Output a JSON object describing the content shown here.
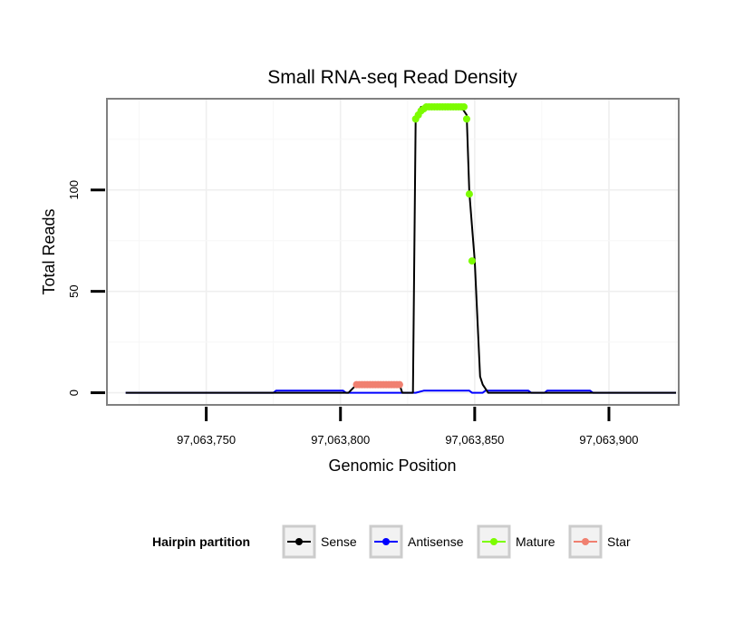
{
  "chart_data": {
    "type": "line",
    "title": "Small RNA-seq Read Density",
    "xlabel": "Genomic Position",
    "ylabel": "Total Reads",
    "xlim": [
      97063713,
      97063926
    ],
    "ylim": [
      -6,
      145
    ],
    "x_ticks": [
      97063750,
      97063800,
      97063850,
      97063900
    ],
    "x_tick_labels": [
      "97,063,750",
      "97,063,800",
      "97,063,850",
      "97,063,900"
    ],
    "y_ticks": [
      0,
      50,
      100
    ],
    "y_tick_labels": [
      "0",
      "50",
      "100"
    ],
    "grid": true,
    "legend": {
      "title": "Hairpin partition",
      "position": "bottom",
      "entries": [
        {
          "name": "Sense",
          "color": "#000000"
        },
        {
          "name": "Antisense",
          "color": "#0000ff"
        },
        {
          "name": "Mature",
          "color": "#7cfc00"
        },
        {
          "name": "Star",
          "color": "#f08070"
        }
      ]
    },
    "series": [
      {
        "name": "Sense",
        "color": "#000000",
        "style": "line",
        "x": [
          97063720,
          97063803,
          97063806,
          97063822,
          97063823,
          97063827,
          97063828,
          97063830,
          97063845,
          97063847,
          97063848,
          97063850,
          97063852,
          97063853,
          97063855,
          97063925
        ],
        "y": [
          0,
          0,
          4,
          4,
          0,
          0,
          135,
          141,
          141,
          137,
          99,
          65,
          8,
          4,
          0,
          0
        ]
      },
      {
        "name": "Antisense",
        "color": "#0000ff",
        "style": "line",
        "x": [
          97063720,
          97063775,
          97063776,
          97063801,
          97063802,
          97063828,
          97063831,
          97063848,
          97063849,
          97063853,
          97063854,
          97063870,
          97063871,
          97063876,
          97063877,
          97063893,
          97063894,
          97063925
        ],
        "y": [
          0,
          0,
          1,
          1,
          0,
          0,
          1,
          1,
          0,
          0,
          1,
          1,
          0,
          0,
          1,
          1,
          0,
          0
        ]
      },
      {
        "name": "Mature",
        "color": "#7cfc00",
        "style": "points",
        "x": [
          97063828,
          97063829,
          97063830,
          97063831,
          97063832,
          97063833,
          97063834,
          97063835,
          97063836,
          97063837,
          97063838,
          97063839,
          97063840,
          97063841,
          97063842,
          97063843,
          97063844,
          97063845,
          97063846,
          97063847,
          97063848,
          97063849
        ],
        "y": [
          135,
          137,
          139,
          140,
          141,
          141,
          141,
          141,
          141,
          141,
          141,
          141,
          141,
          141,
          141,
          141,
          141,
          141,
          141,
          135,
          98,
          65
        ]
      },
      {
        "name": "Star",
        "color": "#f08070",
        "style": "points",
        "x": [
          97063806,
          97063807,
          97063808,
          97063809,
          97063810,
          97063811,
          97063812,
          97063813,
          97063814,
          97063815,
          97063816,
          97063817,
          97063818,
          97063819,
          97063820,
          97063821,
          97063822
        ],
        "y": [
          4,
          4,
          4,
          4,
          4,
          4,
          4,
          4,
          4,
          4,
          4,
          4,
          4,
          4,
          4,
          4,
          4
        ]
      }
    ]
  }
}
